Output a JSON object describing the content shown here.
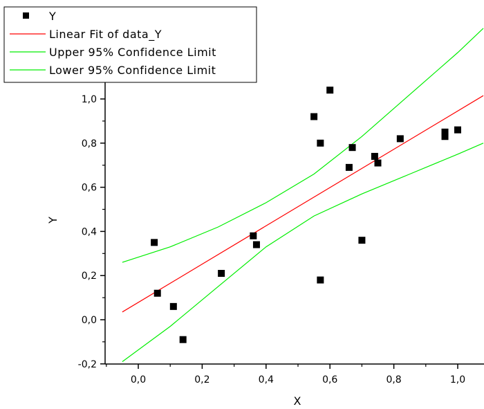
{
  "chart_data": {
    "type": "scatter",
    "xlabel": "X",
    "ylabel": "Y",
    "xlim": [
      -0.1,
      1.08
    ],
    "ylim": [
      -0.2,
      1.2
    ],
    "x_ticks": [
      0.0,
      0.2,
      0.4,
      0.6,
      0.8,
      1.0
    ],
    "x_tick_labels": [
      "0,0",
      "0,2",
      "0,4",
      "0,6",
      "0,8",
      "1,0"
    ],
    "y_ticks": [
      -0.2,
      0.0,
      0.2,
      0.4,
      0.6,
      0.8,
      1.0
    ],
    "y_tick_labels": [
      "-0,2",
      "0,0",
      "0,2",
      "0,4",
      "0,6",
      "0,8",
      "1,0"
    ],
    "grid": false,
    "legend_position": "top-left",
    "series": [
      {
        "name": "Y",
        "kind": "scatter",
        "color": "#000000",
        "points": [
          [
            0.05,
            0.35
          ],
          [
            0.06,
            0.12
          ],
          [
            0.11,
            0.06
          ],
          [
            0.14,
            -0.09
          ],
          [
            0.26,
            0.21
          ],
          [
            0.36,
            0.38
          ],
          [
            0.37,
            0.34
          ],
          [
            0.55,
            0.92
          ],
          [
            0.57,
            0.8
          ],
          [
            0.57,
            0.18
          ],
          [
            0.6,
            1.04
          ],
          [
            0.66,
            0.69
          ],
          [
            0.67,
            0.78
          ],
          [
            0.7,
            0.36
          ],
          [
            0.74,
            0.74
          ],
          [
            0.75,
            0.71
          ],
          [
            0.82,
            0.82
          ],
          [
            0.96,
            0.85
          ],
          [
            0.96,
            0.83
          ],
          [
            1.0,
            0.86
          ]
        ]
      },
      {
        "name": "Linear Fit of data_Y",
        "kind": "line",
        "color": "#ff0000",
        "points": [
          [
            -0.05,
            0.035
          ],
          [
            1.08,
            1.015
          ]
        ]
      },
      {
        "name": "Upper 95% Confidence Limit",
        "kind": "line",
        "color": "#00ee00",
        "points": [
          [
            -0.05,
            0.26
          ],
          [
            0.1,
            0.33
          ],
          [
            0.25,
            0.42
          ],
          [
            0.4,
            0.53
          ],
          [
            0.55,
            0.66
          ],
          [
            0.7,
            0.83
          ],
          [
            0.85,
            1.02
          ],
          [
            1.0,
            1.21
          ],
          [
            1.08,
            1.32
          ]
        ]
      },
      {
        "name": "Lower 95% Confidence Limit",
        "kind": "line",
        "color": "#00ee00",
        "points": [
          [
            -0.05,
            -0.19
          ],
          [
            0.1,
            -0.03
          ],
          [
            0.25,
            0.15
          ],
          [
            0.4,
            0.33
          ],
          [
            0.55,
            0.47
          ],
          [
            0.7,
            0.57
          ],
          [
            0.85,
            0.66
          ],
          [
            1.0,
            0.75
          ],
          [
            1.08,
            0.8
          ]
        ]
      }
    ]
  }
}
